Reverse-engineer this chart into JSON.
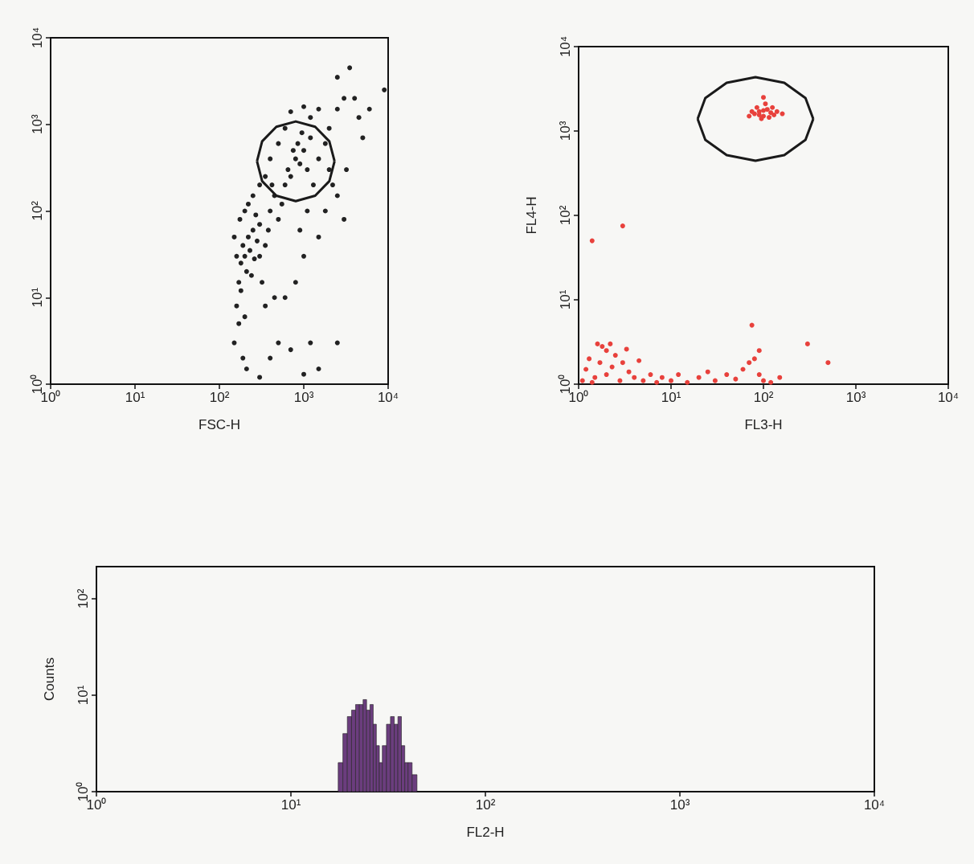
{
  "chart_data": [
    {
      "type": "scatter",
      "xlabel": "FSC-H",
      "log": "xy",
      "marker": "circle",
      "xlim": [
        1,
        10000
      ],
      "ylim": [
        1,
        10000
      ],
      "xticks": [
        {
          "value": 1,
          "label": "10⁰"
        },
        {
          "value": 10,
          "label": "10¹"
        },
        {
          "value": 100,
          "label": "10²"
        },
        {
          "value": 1000,
          "label": "10³"
        },
        {
          "value": 10000,
          "label": "10⁴"
        }
      ],
      "yticks": [
        {
          "value": 1,
          "label": "10⁰"
        },
        {
          "value": 10,
          "label": "10¹"
        },
        {
          "value": 100,
          "label": "10²"
        },
        {
          "value": 1000,
          "label": "10³"
        },
        {
          "value": 10000,
          "label": "10⁴"
        }
      ],
      "series": [
        {
          "color": "#222222",
          "x": [
            150,
            160,
            170,
            180,
            190,
            200,
            210,
            220,
            180,
            200,
            160,
            230,
            250,
            170,
            190,
            210,
            240,
            260,
            280,
            300,
            150,
            175,
            200,
            220,
            250,
            270,
            300,
            320,
            350,
            380,
            400,
            420,
            450,
            500,
            550,
            600,
            650,
            700,
            800,
            900,
            1000,
            1100,
            850,
            750,
            950,
            1200,
            600,
            500,
            400,
            350,
            300,
            1300,
            1500,
            1800,
            2000,
            2500,
            3000,
            3500,
            2500,
            1500,
            1200,
            700,
            1000,
            2000,
            2500,
            3000,
            1800,
            1500,
            1000,
            800,
            600,
            500,
            400,
            700,
            1200,
            1500,
            2500,
            300,
            1000,
            450,
            350,
            900,
            1100,
            2200,
            4500,
            6000,
            5000,
            3200,
            4000,
            9000
          ],
          "values": [
            3,
            8,
            15,
            25,
            40,
            30,
            20,
            50,
            12,
            6,
            30,
            35,
            60,
            5,
            2,
            1.5,
            18,
            28,
            45,
            70,
            50,
            80,
            100,
            120,
            150,
            90,
            30,
            15,
            40,
            60,
            100,
            200,
            150,
            80,
            120,
            200,
            300,
            250,
            400,
            350,
            500,
            300,
            600,
            500,
            800,
            700,
            900,
            600,
            400,
            250,
            200,
            200,
            400,
            600,
            900,
            1500,
            2000,
            4500,
            3500,
            1500,
            1200,
            1400,
            1600,
            300,
            150,
            80,
            100,
            50,
            30,
            15,
            10,
            3,
            2,
            2.5,
            3,
            1.5,
            3,
            1.2,
            1.3,
            10,
            8,
            60,
            100,
            200,
            1200,
            1500,
            700,
            300,
            2000,
            2500
          ]
        },
        {
          "type": "line",
          "marker": "none",
          "color": "#1a1a1a",
          "x": [
            279,
            321,
            473,
            803,
            1365,
            2009,
            2317
          ],
          "values": [
            375,
            637,
            938,
            1081,
            938,
            637,
            375
          ]
        },
        {
          "type": "line",
          "marker": "none",
          "color": "#1a1a1a",
          "x": [
            279,
            321,
            473,
            803,
            1365,
            2009,
            2317
          ],
          "values": [
            375,
            221,
            150,
            130,
            150,
            221,
            375
          ]
        }
      ]
    },
    {
      "type": "scatter",
      "xlabel": "FL3-H",
      "ylabel": "FL4-H",
      "log": "xy",
      "marker": "circle",
      "xlim": [
        1,
        10000
      ],
      "ylim": [
        1,
        10000
      ],
      "xticks": [
        {
          "value": 1,
          "label": "10⁰"
        },
        {
          "value": 10,
          "label": "10¹"
        },
        {
          "value": 100,
          "label": "10²"
        },
        {
          "value": 1000,
          "label": "10³"
        },
        {
          "value": 10000,
          "label": "10⁴"
        }
      ],
      "yticks": [
        {
          "value": 1,
          "label": "10⁰"
        },
        {
          "value": 10,
          "label": "10¹"
        },
        {
          "value": 100,
          "label": "10²"
        },
        {
          "value": 1000,
          "label": "10³"
        },
        {
          "value": 10000,
          "label": "10⁴"
        }
      ],
      "series": [
        {
          "color": "#e8413c",
          "x": [
            80,
            90,
            100,
            110,
            95,
            120,
            85,
            105,
            130,
            75,
            115,
            100,
            90,
            140,
            70,
            125,
            100,
            160,
            1.1,
            1.2,
            1.3,
            1.5,
            1.7,
            2,
            2,
            2.3,
            2.5,
            2.8,
            3,
            3.5,
            4,
            4.5,
            5,
            6,
            7,
            8,
            10,
            12,
            15,
            20,
            25,
            30,
            40,
            50,
            60,
            70,
            80,
            90,
            100,
            120,
            2.2,
            1.8,
            1.4,
            3.3,
            1.4,
            3,
            1.6,
            75,
            90,
            300,
            500,
            150
          ],
          "values": [
            1600,
            1700,
            1500,
            1800,
            1400,
            1650,
            1900,
            2100,
            1550,
            1700,
            1450,
            1750,
            1550,
            1700,
            1500,
            1900,
            2500,
            1600,
            1.1,
            1.5,
            2,
            1.2,
            1.8,
            2.5,
            1.3,
            1.6,
            2.2,
            1.1,
            1.8,
            1.4,
            1.2,
            1.9,
            1.1,
            1.3,
            1.05,
            1.2,
            1.1,
            1.3,
            1.05,
            1.2,
            1.4,
            1.1,
            1.3,
            1.15,
            1.5,
            1.8,
            2,
            1.3,
            1.1,
            1.05,
            3,
            2.8,
            1.05,
            2.6,
            50,
            75,
            3,
            5,
            2.5,
            3,
            1.8,
            1.2
          ]
        },
        {
          "type": "line",
          "marker": "none",
          "color": "#1a1a1a",
          "x": [
            19.4,
            23.5,
            40,
            82,
            168,
            285,
            346
          ],
          "values": [
            1390,
            2460,
            3730,
            4350,
            3730,
            2460,
            1390
          ]
        },
        {
          "type": "line",
          "marker": "none",
          "color": "#1a1a1a",
          "x": [
            19.4,
            23.5,
            40,
            82,
            168,
            285,
            346
          ],
          "values": [
            1390,
            785,
            518,
            445,
            518,
            785,
            1390
          ]
        }
      ]
    },
    {
      "type": "histogram",
      "xlabel": "FL2-H",
      "ylabel": "Counts",
      "log": "xy",
      "color": "#6b3d7e",
      "xlim": [
        1,
        10000
      ],
      "ylim": [
        1,
        215
      ],
      "xticks": [
        {
          "value": 1,
          "label": "10⁰"
        },
        {
          "value": 10,
          "label": "10¹"
        },
        {
          "value": 100,
          "label": "10²"
        },
        {
          "value": 1000,
          "label": "10³"
        },
        {
          "value": 10000,
          "label": "10⁴"
        }
      ],
      "yticks": [
        {
          "value": 1,
          "label": "10⁰"
        },
        {
          "value": 10,
          "label": "10¹"
        },
        {
          "value": 100,
          "label": "10²"
        }
      ],
      "bins": [
        17.5,
        18.5,
        19.5,
        20.5,
        21.5,
        22.5,
        23.5,
        24.5,
        25.5,
        26.5,
        27.5,
        28.5,
        29.5,
        31,
        32.5,
        34,
        35.5,
        37,
        38.5,
        40,
        42,
        44.5
      ],
      "values": [
        2,
        4,
        6,
        7,
        8,
        8,
        9,
        7,
        8,
        5,
        3,
        2,
        3,
        5,
        6,
        5,
        6,
        3,
        2,
        2,
        1.5
      ]
    }
  ]
}
